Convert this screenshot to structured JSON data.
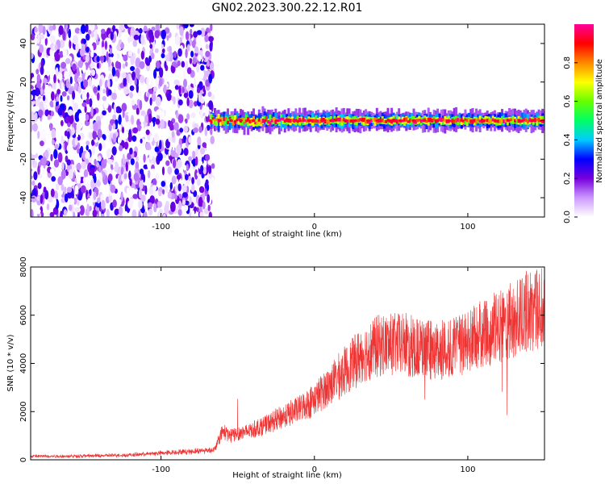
{
  "title": "GN02.2023.300.22.12.R01",
  "chart_data": [
    {
      "type": "heatmap",
      "title": "GN02.2023.300.22.12.R01",
      "xlabel": "Height of straight line (km)",
      "ylabel": "Frequency (Hz)",
      "xlim": [
        -185,
        150
      ],
      "ylim": [
        -50,
        50
      ],
      "xticks": [
        "-100",
        "0",
        "100"
      ],
      "yticks": [
        "-40",
        "-20",
        "0",
        "20",
        "40"
      ],
      "colorbar": {
        "label": "Normalized spectral amplitude",
        "range": [
          0,
          1
        ],
        "ticks": [
          "0.0",
          "0.2",
          "0.4",
          "0.6",
          "0.8"
        ],
        "colors": [
          "#ffffff",
          "#cc99ff",
          "#7700dd",
          "#0000ff",
          "#00ccff",
          "#00ff66",
          "#66ff00",
          "#ffff00",
          "#ff8800",
          "#ff0000",
          "#ff0099"
        ]
      },
      "regions": [
        {
          "x_range": [
            -185,
            -68
          ],
          "description": "diffuse noise",
          "peak_amplitude": 0.3
        },
        {
          "x_range": [
            -68,
            150
          ],
          "frequency": 0,
          "peak_amplitude": 1.0
        }
      ]
    },
    {
      "type": "line",
      "xlabel": "Height of straight line (km)",
      "ylabel": "SNR (10 * v/v)",
      "xlim": [
        -185,
        150
      ],
      "ylim": [
        0,
        8000
      ],
      "xticks": [
        "-100",
        "0",
        "100"
      ],
      "yticks": [
        "0",
        "2000",
        "4000",
        "6000",
        "8000"
      ],
      "color": "#ee3333",
      "series": [
        {
          "x": [
            -185,
            -160,
            -140,
            -120,
            -100,
            -80,
            -65,
            -60,
            -55,
            -50,
            -45,
            -40,
            -30,
            -20,
            -10,
            0,
            10,
            20,
            30,
            40,
            50,
            60,
            70,
            80,
            90,
            100,
            110,
            120,
            130,
            140,
            145,
            150
          ],
          "y": [
            150,
            150,
            170,
            200,
            280,
            350,
            420,
            1200,
            1000,
            1100,
            1150,
            1250,
            1500,
            1800,
            2100,
            2500,
            3100,
            3700,
            4300,
            4700,
            4800,
            4800,
            4600,
            4500,
            4600,
            4900,
            5200,
            5500,
            5800,
            6200,
            6200,
            6300
          ]
        }
      ]
    }
  ]
}
